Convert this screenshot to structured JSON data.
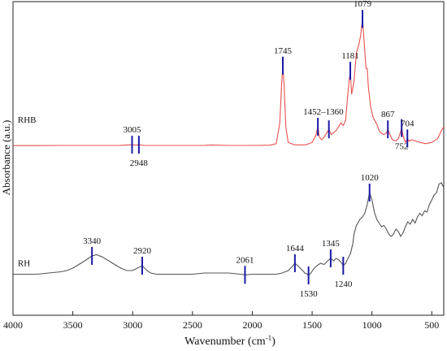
{
  "chart_data": {
    "type": "line",
    "title": "",
    "xlabel": "Wavenumber (cm",
    "xlabel_sup": "-1",
    "xlabel_close": ")",
    "ylabel": "Absorbance (a.u.)",
    "xlim": [
      4000,
      400
    ],
    "x_reversed": true,
    "y_ticks_shown": false,
    "x_ticks": [
      4000,
      3500,
      3000,
      2500,
      2000,
      1500,
      1000,
      500
    ],
    "grid": false,
    "series": [
      {
        "name": "RHB",
        "color": "#e8504f",
        "x": [
          4000,
          3800,
          3600,
          3400,
          3200,
          3100,
          3005,
          2975,
          2948,
          2900,
          2800,
          2600,
          2400,
          2350,
          2200,
          2000,
          1850,
          1800,
          1770,
          1755,
          1745,
          1735,
          1720,
          1700,
          1650,
          1600,
          1550,
          1500,
          1470,
          1452,
          1440,
          1420,
          1400,
          1380,
          1360,
          1340,
          1300,
          1260,
          1240,
          1220,
          1200,
          1181,
          1170,
          1160,
          1150,
          1130,
          1110,
          1095,
          1079,
          1065,
          1050,
          1040,
          1030,
          1010,
          990,
          960,
          940,
          920,
          900,
          880,
          867,
          850,
          830,
          800,
          780,
          765,
          752,
          740,
          720,
          704,
          690,
          670,
          600,
          550,
          500,
          450,
          420,
          400
        ],
        "y": [
          0.005,
          0.005,
          0.006,
          0.006,
          0.006,
          0.007,
          0.012,
          0.008,
          0.011,
          0.006,
          0.006,
          0.006,
          0.006,
          0.01,
          0.006,
          0.006,
          0.008,
          0.02,
          0.18,
          0.48,
          0.62,
          0.48,
          0.15,
          0.03,
          0.012,
          0.01,
          0.012,
          0.03,
          0.08,
          0.15,
          0.07,
          0.05,
          0.07,
          0.1,
          0.13,
          0.09,
          0.12,
          0.18,
          0.16,
          0.2,
          0.42,
          0.58,
          0.4,
          0.45,
          0.5,
          0.72,
          0.78,
          0.85,
          0.98,
          0.8,
          0.6,
          0.6,
          0.45,
          0.3,
          0.22,
          0.17,
          0.12,
          0.1,
          0.09,
          0.1,
          0.13,
          0.09,
          0.05,
          0.04,
          0.06,
          0.1,
          0.14,
          0.08,
          0.03,
          0.06,
          0.04,
          0.05,
          0.03,
          0.02,
          0.03,
          0.06,
          0.12,
          0.15
        ]
      },
      {
        "name": "RH",
        "color": "#555555",
        "x": [
          4000,
          3900,
          3800,
          3700,
          3600,
          3550,
          3500,
          3450,
          3400,
          3340,
          3300,
          3250,
          3200,
          3150,
          3100,
          3050,
          3000,
          2960,
          2920,
          2880,
          2850,
          2800,
          2700,
          2600,
          2500,
          2400,
          2350,
          2300,
          2200,
          2100,
          2061,
          2000,
          1900,
          1800,
          1750,
          1700,
          1680,
          1660,
          1644,
          1620,
          1600,
          1580,
          1560,
          1540,
          1530,
          1510,
          1490,
          1460,
          1430,
          1400,
          1370,
          1345,
          1320,
          1300,
          1280,
          1260,
          1240,
          1220,
          1200,
          1180,
          1160,
          1150,
          1130,
          1100,
          1080,
          1060,
          1040,
          1020,
          1000,
          980,
          960,
          940,
          920,
          900,
          880,
          860,
          840,
          820,
          800,
          780,
          760,
          740,
          720,
          700,
          680,
          660,
          640,
          620,
          600,
          580,
          560,
          540,
          520,
          500,
          480,
          460,
          440,
          420,
          400
        ],
        "y": [
          0.05,
          0.05,
          0.05,
          0.06,
          0.07,
          0.08,
          0.1,
          0.13,
          0.16,
          0.2,
          0.21,
          0.19,
          0.16,
          0.13,
          0.1,
          0.08,
          0.08,
          0.1,
          0.12,
          0.08,
          0.06,
          0.05,
          0.05,
          0.05,
          0.05,
          0.06,
          0.06,
          0.06,
          0.06,
          0.05,
          0.045,
          0.05,
          0.05,
          0.05,
          0.06,
          0.08,
          0.1,
          0.12,
          0.14,
          0.12,
          0.1,
          0.08,
          0.06,
          0.05,
          0.04,
          0.06,
          0.09,
          0.12,
          0.14,
          0.13,
          0.16,
          0.18,
          0.16,
          0.18,
          0.17,
          0.15,
          0.12,
          0.14,
          0.18,
          0.22,
          0.3,
          0.38,
          0.45,
          0.5,
          0.52,
          0.55,
          0.62,
          0.72,
          0.66,
          0.56,
          0.5,
          0.47,
          0.44,
          0.45,
          0.42,
          0.38,
          0.36,
          0.38,
          0.42,
          0.4,
          0.36,
          0.39,
          0.44,
          0.48,
          0.46,
          0.5,
          0.47,
          0.52,
          0.55,
          0.53,
          0.57,
          0.56,
          0.62,
          0.66,
          0.7,
          0.72,
          0.79,
          0.8,
          0.76
        ]
      }
    ],
    "annotations": [
      {
        "series": "RHB",
        "label": "3005",
        "x": 3005,
        "label_pos": "above"
      },
      {
        "series": "RHB",
        "label": "2948",
        "x": 2948,
        "label_pos": "below"
      },
      {
        "series": "RHB",
        "label": "1745",
        "x": 1745,
        "label_pos": "above"
      },
      {
        "series": "RHB",
        "label": "1452–1360",
        "x": 1452,
        "x2": 1360,
        "label_pos": "above"
      },
      {
        "series": "RHB",
        "label": "1181",
        "x": 1181,
        "label_pos": "above"
      },
      {
        "series": "RHB",
        "label": "1079",
        "x": 1079,
        "label_pos": "above"
      },
      {
        "series": "RHB",
        "label": "867",
        "x": 867,
        "label_pos": "above"
      },
      {
        "series": "RHB",
        "label": "752",
        "x": 752,
        "label_pos": "below"
      },
      {
        "series": "RHB",
        "label": "704",
        "x": 704,
        "label_pos": "above"
      },
      {
        "series": "RH",
        "label": "3340",
        "x": 3340,
        "label_pos": "above"
      },
      {
        "series": "RH",
        "label": "2920",
        "x": 2920,
        "label_pos": "above"
      },
      {
        "series": "RH",
        "label": "2061",
        "x": 2061,
        "label_pos": "above"
      },
      {
        "series": "RH",
        "label": "1644",
        "x": 1644,
        "label_pos": "above"
      },
      {
        "series": "RH",
        "label": "1530",
        "x": 1530,
        "label_pos": "below"
      },
      {
        "series": "RH",
        "label": "1345",
        "x": 1345,
        "label_pos": "above"
      },
      {
        "series": "RH",
        "label": "1240",
        "x": 1240,
        "label_pos": "below"
      },
      {
        "series": "RH",
        "label": "1020",
        "x": 1020,
        "label_pos": "above"
      }
    ],
    "legend": "labels beside curves on the left",
    "marker_color": "#1a1aa6"
  }
}
